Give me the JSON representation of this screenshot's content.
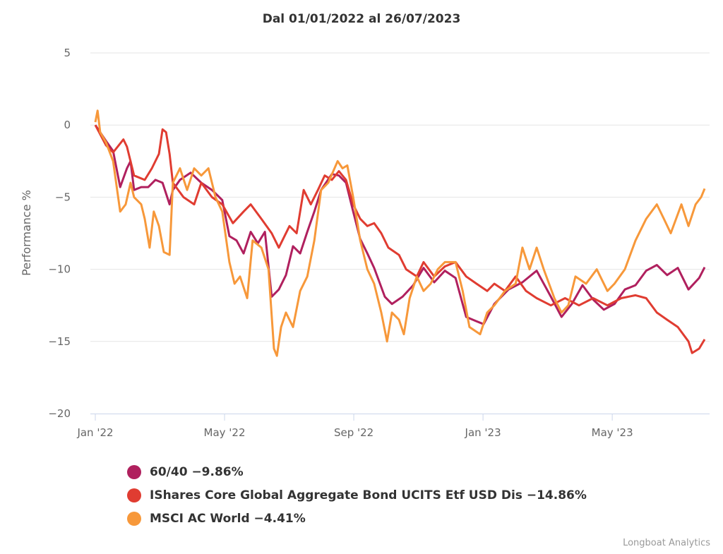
{
  "chart_data": {
    "type": "line",
    "title": "Dal 01/01/2022 al 26/07/2023",
    "xlabel": "",
    "ylabel": "Performance %",
    "x_unit": "months since 2022-01-01",
    "xlim": [
      0,
      18.86
    ],
    "ylim": [
      -20,
      5
    ],
    "yticks": [
      5,
      0,
      -5,
      -10,
      -15,
      -20
    ],
    "yticklabels": [
      "5",
      "0",
      "−5",
      "−10",
      "−15",
      "−20"
    ],
    "xticks": [
      0,
      4,
      8,
      12,
      16
    ],
    "xticklabels": [
      "Jan '22",
      "May '22",
      "Sep '22",
      "Jan '23",
      "May '23"
    ],
    "grid": true,
    "legend_position": "bottom-left",
    "series": [
      {
        "name": "60/40 −9.86%",
        "color": "#b0205e",
        "points": [
          [
            0,
            0
          ],
          [
            0.33,
            -1.1
          ],
          [
            0.55,
            -1.8
          ],
          [
            0.77,
            -4.3
          ],
          [
            0.98,
            -3.0
          ],
          [
            1.09,
            -2.5
          ],
          [
            1.2,
            -4.5
          ],
          [
            1.42,
            -4.3
          ],
          [
            1.64,
            -4.3
          ],
          [
            1.86,
            -3.8
          ],
          [
            2.08,
            -4.0
          ],
          [
            2.3,
            -5.5
          ],
          [
            2.4,
            -4.5
          ],
          [
            2.62,
            -3.8
          ],
          [
            2.95,
            -3.3
          ],
          [
            3.28,
            -4.0
          ],
          [
            3.61,
            -4.5
          ],
          [
            3.93,
            -5.2
          ],
          [
            4.15,
            -7.7
          ],
          [
            4.37,
            -8.0
          ],
          [
            4.59,
            -8.9
          ],
          [
            4.81,
            -7.4
          ],
          [
            5.03,
            -8.2
          ],
          [
            5.25,
            -7.4
          ],
          [
            5.46,
            -11.9
          ],
          [
            5.68,
            -11.4
          ],
          [
            5.9,
            -10.4
          ],
          [
            6.12,
            -8.4
          ],
          [
            6.34,
            -8.9
          ],
          [
            6.56,
            -7.4
          ],
          [
            6.78,
            -6.0
          ],
          [
            6.99,
            -4.5
          ],
          [
            7.32,
            -3.4
          ],
          [
            7.54,
            -3.5
          ],
          [
            7.76,
            -4.0
          ],
          [
            7.98,
            -6.0
          ],
          [
            8.2,
            -7.9
          ],
          [
            8.42,
            -8.9
          ],
          [
            8.63,
            -9.9
          ],
          [
            8.96,
            -11.9
          ],
          [
            9.18,
            -12.4
          ],
          [
            9.51,
            -11.9
          ],
          [
            9.84,
            -11.1
          ],
          [
            10.16,
            -9.9
          ],
          [
            10.49,
            -10.9
          ],
          [
            10.82,
            -10.1
          ],
          [
            11.15,
            -10.6
          ],
          [
            11.48,
            -13.3
          ],
          [
            11.8,
            -13.6
          ],
          [
            12.02,
            -13.8
          ],
          [
            12.35,
            -12.4
          ],
          [
            12.79,
            -11.4
          ],
          [
            13.22,
            -10.9
          ],
          [
            13.66,
            -10.1
          ],
          [
            14.1,
            -11.9
          ],
          [
            14.43,
            -13.3
          ],
          [
            14.75,
            -12.4
          ],
          [
            15.08,
            -11.1
          ],
          [
            15.41,
            -12.1
          ],
          [
            15.74,
            -12.8
          ],
          [
            16.07,
            -12.4
          ],
          [
            16.39,
            -11.4
          ],
          [
            16.72,
            -11.1
          ],
          [
            17.05,
            -10.1
          ],
          [
            17.38,
            -9.7
          ],
          [
            17.7,
            -10.4
          ],
          [
            18.03,
            -9.9
          ],
          [
            18.36,
            -11.4
          ],
          [
            18.69,
            -10.6
          ],
          [
            18.86,
            -9.86
          ]
        ]
      },
      {
        "name": "IShares Core Global Aggregate Bond UCITS Etf USD Dis −14.86%",
        "color": "#e03c31",
        "points": [
          [
            0,
            0
          ],
          [
            0.33,
            -1.4
          ],
          [
            0.55,
            -1.9
          ],
          [
            0.87,
            -1.0
          ],
          [
            0.98,
            -1.5
          ],
          [
            1.2,
            -3.5
          ],
          [
            1.53,
            -3.8
          ],
          [
            1.75,
            -3.0
          ],
          [
            1.97,
            -2.0
          ],
          [
            2.08,
            -0.3
          ],
          [
            2.19,
            -0.5
          ],
          [
            2.3,
            -2.0
          ],
          [
            2.4,
            -4.0
          ],
          [
            2.73,
            -5.0
          ],
          [
            3.06,
            -5.5
          ],
          [
            3.28,
            -4.0
          ],
          [
            3.61,
            -5.0
          ],
          [
            3.93,
            -5.5
          ],
          [
            4.26,
            -6.8
          ],
          [
            4.59,
            -6.0
          ],
          [
            4.81,
            -5.5
          ],
          [
            5.14,
            -6.5
          ],
          [
            5.46,
            -7.5
          ],
          [
            5.68,
            -8.5
          ],
          [
            6.01,
            -7.0
          ],
          [
            6.23,
            -7.5
          ],
          [
            6.34,
            -6.0
          ],
          [
            6.45,
            -4.5
          ],
          [
            6.67,
            -5.5
          ],
          [
            6.89,
            -4.5
          ],
          [
            7.1,
            -3.5
          ],
          [
            7.32,
            -3.8
          ],
          [
            7.54,
            -3.2
          ],
          [
            7.76,
            -3.8
          ],
          [
            7.98,
            -5.5
          ],
          [
            8.2,
            -6.5
          ],
          [
            8.42,
            -7.0
          ],
          [
            8.63,
            -6.8
          ],
          [
            8.85,
            -7.5
          ],
          [
            9.07,
            -8.5
          ],
          [
            9.4,
            -9.0
          ],
          [
            9.62,
            -10.0
          ],
          [
            9.95,
            -10.5
          ],
          [
            10.16,
            -9.5
          ],
          [
            10.49,
            -10.5
          ],
          [
            10.82,
            -9.8
          ],
          [
            11.15,
            -9.5
          ],
          [
            11.48,
            -10.5
          ],
          [
            11.8,
            -11.0
          ],
          [
            12.13,
            -11.5
          ],
          [
            12.35,
            -11.0
          ],
          [
            12.68,
            -11.5
          ],
          [
            13.01,
            -10.5
          ],
          [
            13.33,
            -11.5
          ],
          [
            13.66,
            -12.0
          ],
          [
            14.1,
            -12.5
          ],
          [
            14.54,
            -12.0
          ],
          [
            14.97,
            -12.5
          ],
          [
            15.41,
            -12.0
          ],
          [
            15.85,
            -12.5
          ],
          [
            16.28,
            -12.0
          ],
          [
            16.72,
            -11.8
          ],
          [
            17.05,
            -12.0
          ],
          [
            17.38,
            -13.0
          ],
          [
            17.7,
            -13.5
          ],
          [
            18.03,
            -14.0
          ],
          [
            18.36,
            -15.0
          ],
          [
            18.47,
            -15.8
          ],
          [
            18.69,
            -15.5
          ],
          [
            18.86,
            -14.86
          ]
        ]
      },
      {
        "name": "MSCI AC World −4.41%",
        "color": "#f7983a",
        "points": [
          [
            0,
            0.2
          ],
          [
            0.07,
            1.0
          ],
          [
            0.15,
            -0.5
          ],
          [
            0.33,
            -1.2
          ],
          [
            0.55,
            -2.5
          ],
          [
            0.77,
            -6.0
          ],
          [
            0.94,
            -5.5
          ],
          [
            1.09,
            -4.0
          ],
          [
            1.2,
            -5.0
          ],
          [
            1.42,
            -5.5
          ],
          [
            1.53,
            -6.5
          ],
          [
            1.68,
            -8.5
          ],
          [
            1.81,
            -6.0
          ],
          [
            1.97,
            -7.0
          ],
          [
            2.12,
            -8.8
          ],
          [
            2.3,
            -9.0
          ],
          [
            2.4,
            -4.0
          ],
          [
            2.62,
            -3.0
          ],
          [
            2.84,
            -4.5
          ],
          [
            3.06,
            -3.0
          ],
          [
            3.28,
            -3.5
          ],
          [
            3.5,
            -3.0
          ],
          [
            3.72,
            -5.0
          ],
          [
            3.93,
            -6.0
          ],
          [
            4.15,
            -9.5
          ],
          [
            4.31,
            -11.0
          ],
          [
            4.48,
            -10.5
          ],
          [
            4.7,
            -12.0
          ],
          [
            4.87,
            -8.0
          ],
          [
            5.14,
            -8.5
          ],
          [
            5.36,
            -10.0
          ],
          [
            5.53,
            -15.5
          ],
          [
            5.62,
            -16.0
          ],
          [
            5.75,
            -14.0
          ],
          [
            5.9,
            -13.0
          ],
          [
            6.12,
            -14.0
          ],
          [
            6.34,
            -11.5
          ],
          [
            6.56,
            -10.5
          ],
          [
            6.78,
            -8.0
          ],
          [
            6.99,
            -4.5
          ],
          [
            7.21,
            -4.0
          ],
          [
            7.5,
            -2.5
          ],
          [
            7.65,
            -3.0
          ],
          [
            7.8,
            -2.8
          ],
          [
            7.98,
            -5.0
          ],
          [
            8.2,
            -8.0
          ],
          [
            8.42,
            -10.0
          ],
          [
            8.63,
            -11.0
          ],
          [
            8.85,
            -13.0
          ],
          [
            9.03,
            -15.0
          ],
          [
            9.18,
            -13.0
          ],
          [
            9.4,
            -13.5
          ],
          [
            9.55,
            -14.5
          ],
          [
            9.73,
            -12.0
          ],
          [
            9.95,
            -10.5
          ],
          [
            10.16,
            -11.5
          ],
          [
            10.38,
            -11.0
          ],
          [
            10.6,
            -10.0
          ],
          [
            10.82,
            -9.5
          ],
          [
            11.15,
            -9.5
          ],
          [
            11.37,
            -11.5
          ],
          [
            11.58,
            -14.0
          ],
          [
            11.91,
            -14.5
          ],
          [
            12.13,
            -13.0
          ],
          [
            12.35,
            -12.5
          ],
          [
            12.68,
            -11.5
          ],
          [
            13.01,
            -11.0
          ],
          [
            13.22,
            -8.5
          ],
          [
            13.44,
            -10.0
          ],
          [
            13.66,
            -8.5
          ],
          [
            13.88,
            -10.0
          ],
          [
            14.21,
            -12.0
          ],
          [
            14.43,
            -13.0
          ],
          [
            14.64,
            -12.5
          ],
          [
            14.86,
            -10.5
          ],
          [
            15.19,
            -11.0
          ],
          [
            15.52,
            -10.0
          ],
          [
            15.85,
            -11.5
          ],
          [
            16.07,
            -11.0
          ],
          [
            16.39,
            -10.0
          ],
          [
            16.72,
            -8.0
          ],
          [
            17.05,
            -6.5
          ],
          [
            17.38,
            -5.5
          ],
          [
            17.6,
            -6.5
          ],
          [
            17.81,
            -7.5
          ],
          [
            18.14,
            -5.5
          ],
          [
            18.36,
            -7.0
          ],
          [
            18.58,
            -5.5
          ],
          [
            18.75,
            -5.0
          ],
          [
            18.86,
            -4.41
          ]
        ]
      }
    ]
  },
  "credits": "Longboat Analytics"
}
